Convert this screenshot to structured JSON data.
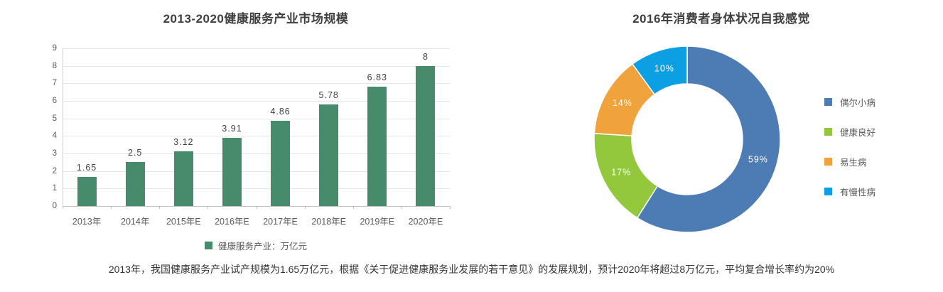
{
  "chart_data": [
    {
      "type": "bar",
      "title": "2013-2020健康服务产业市场规模",
      "categories": [
        "2013年",
        "2014年",
        "2015年E",
        "2016年E",
        "2017年E",
        "2018年E",
        "2019年E",
        "2020年E"
      ],
      "values": [
        1.65,
        2.5,
        3.12,
        3.91,
        4.86,
        5.78,
        6.83,
        8
      ],
      "value_labels": [
        "1.65",
        "2.5",
        "3.12",
        "3.91",
        "4.86",
        "5.78",
        "6.83",
        "8"
      ],
      "xlabel": "",
      "ylabel": "",
      "ylim": [
        0,
        9
      ],
      "y_ticks": [
        0,
        1,
        2,
        3,
        4,
        5,
        6,
        7,
        8,
        9
      ],
      "grid": true,
      "bar_color": "#478b6d",
      "legend_position": "bottom",
      "legend": [
        "健康服务产业：万亿元"
      ]
    },
    {
      "type": "pie",
      "donut": true,
      "title": "2016年消费者身体状况自我感觉",
      "labels": [
        "偶尔小病",
        "健康良好",
        "易生病",
        "有慢性病"
      ],
      "values": [
        59,
        17,
        14,
        10
      ],
      "percent_labels": [
        "59%",
        "17%",
        "14%",
        "10%"
      ],
      "colors": [
        "#4d7cb5",
        "#93c83d",
        "#f0a23c",
        "#0c9fe4"
      ],
      "start_angle_deg": 0,
      "direction": "clockwise",
      "legend_position": "right"
    }
  ],
  "caption": "2013年，我国健康服务产业试产规模为1.65万亿元，根据《关于促进健康服务业发展的若干意见》的发展规划，预计2020年将超过8万亿元，平均复合增长率约为20%"
}
